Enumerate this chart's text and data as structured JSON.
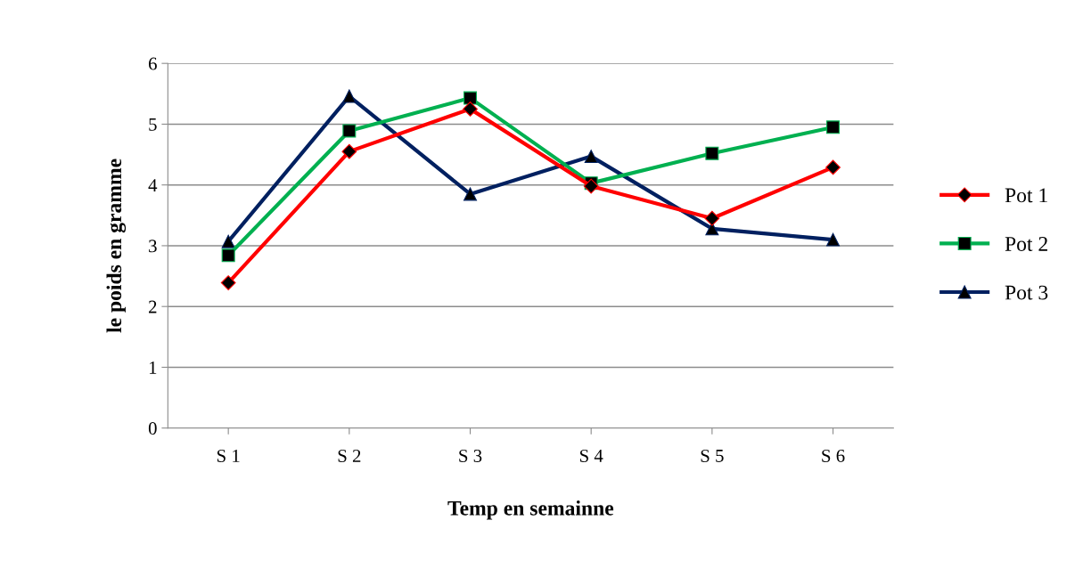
{
  "chart_data": {
    "type": "line",
    "xlabel": "Temp en semainne",
    "ylabel": "le poids en gramme",
    "categories": [
      "S 1",
      "S 2",
      "S 3",
      "S 4",
      "S 5",
      "S 6"
    ],
    "series": [
      {
        "name": "Pot 1",
        "color": "#ff0000",
        "marker": "diamond",
        "values": [
          2.39,
          4.55,
          5.25,
          3.98,
          3.45,
          4.29
        ]
      },
      {
        "name": "Pot 2",
        "color": "#00b050",
        "marker": "square",
        "values": [
          2.84,
          4.89,
          5.43,
          4.03,
          4.52,
          4.95
        ]
      },
      {
        "name": "Pot 3",
        "color": "#002060",
        "marker": "triangle",
        "values": [
          3.07,
          5.46,
          3.85,
          4.47,
          3.28,
          3.1
        ]
      }
    ],
    "ylim": [
      0,
      6
    ],
    "yticks": [
      0,
      1,
      2,
      3,
      4,
      5,
      6
    ],
    "grid": "y",
    "legend": "right"
  }
}
